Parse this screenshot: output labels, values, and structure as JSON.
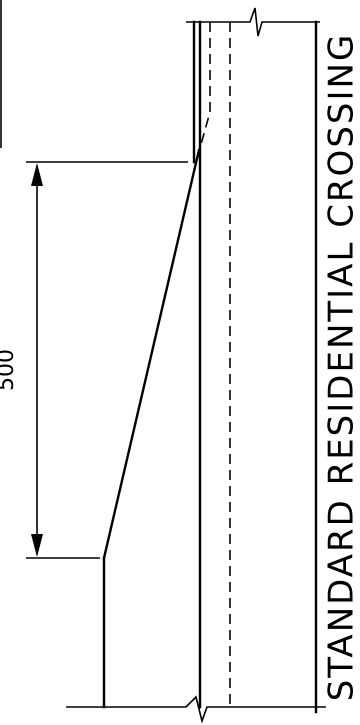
{
  "drawing": {
    "title": "STANDARD RESIDENTIAL CROSSING",
    "dimension_label": "500"
  }
}
